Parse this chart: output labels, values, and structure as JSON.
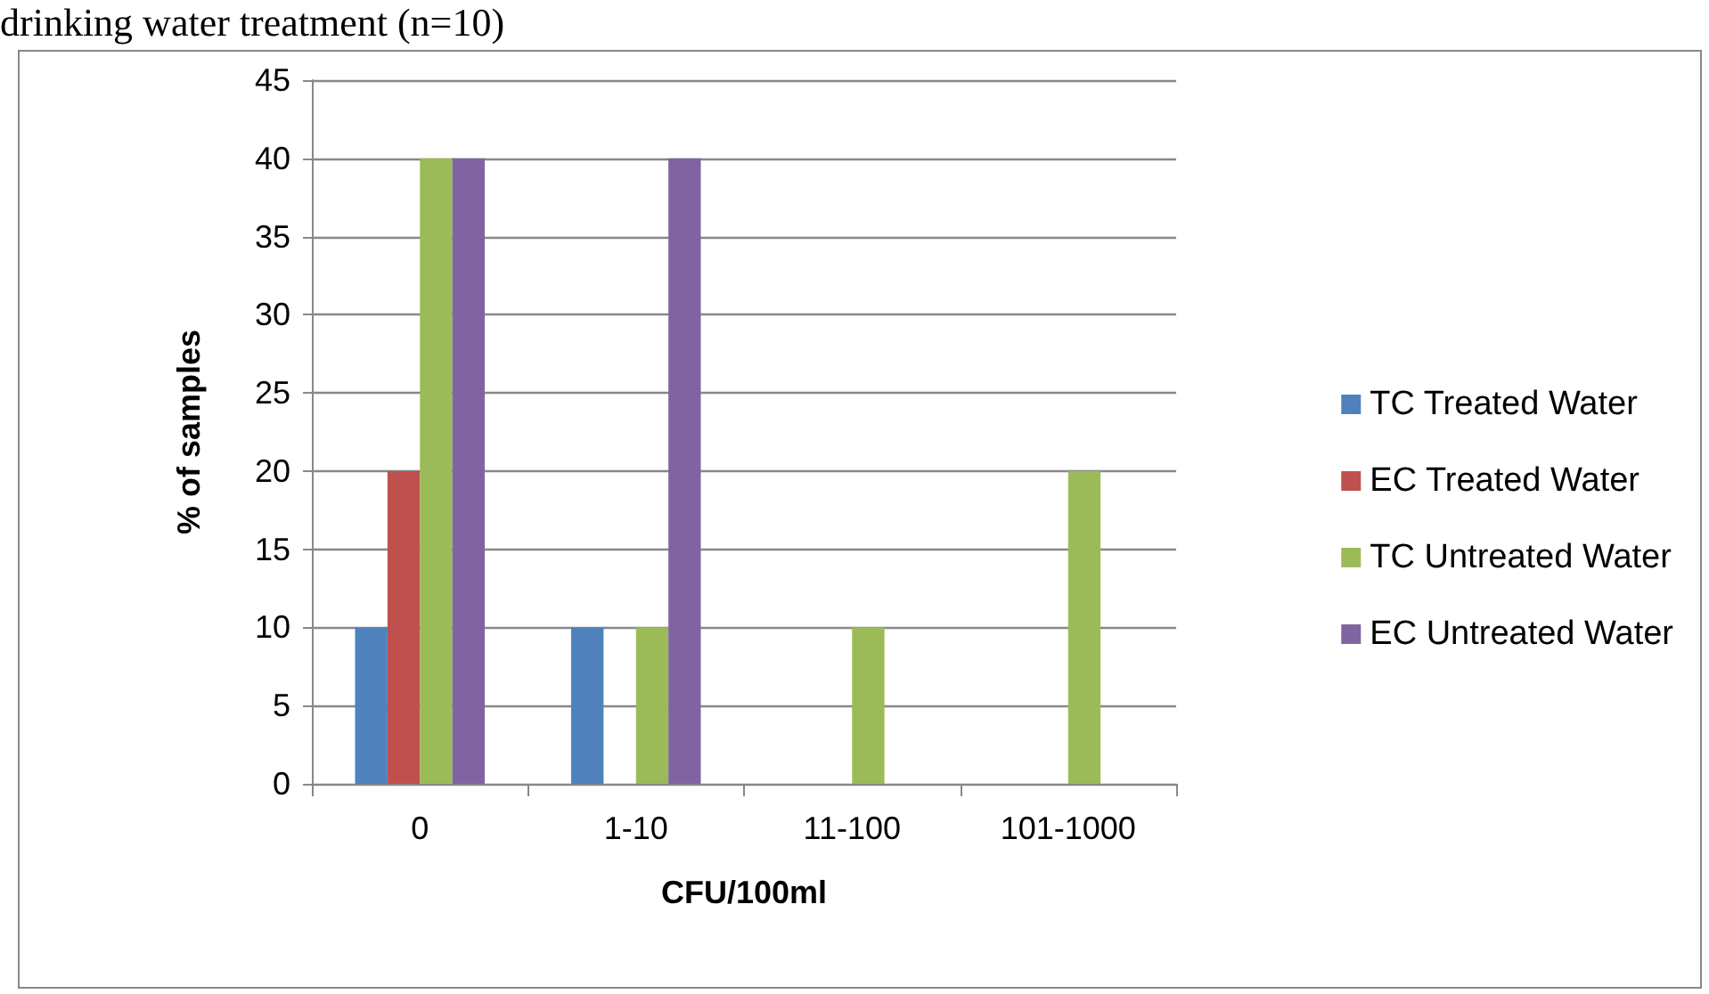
{
  "chart_data": {
    "type": "bar",
    "title": "drinking water treatment (n=10)",
    "xlabel": "CFU/100ml",
    "ylabel": "% of samples",
    "categories": [
      "0",
      "1-10",
      "11-100",
      "101-1000"
    ],
    "series": [
      {
        "name": "TC Treated Water",
        "color": "#4f81bd",
        "values": [
          10,
          10,
          0,
          0
        ]
      },
      {
        "name": "EC Treated Water",
        "color": "#c0504d",
        "values": [
          20,
          0,
          0,
          0
        ]
      },
      {
        "name": "TC Untreated Water",
        "color": "#9bbb59",
        "values": [
          40,
          10,
          10,
          20
        ]
      },
      {
        "name": "EC Untreated Water",
        "color": "#8064a2",
        "values": [
          40,
          40,
          0,
          0
        ]
      }
    ],
    "ylim": [
      0,
      45
    ],
    "yticks": [
      0,
      5,
      10,
      15,
      20,
      25,
      30,
      35,
      40,
      45
    ],
    "grid": "y",
    "legend": "right"
  }
}
